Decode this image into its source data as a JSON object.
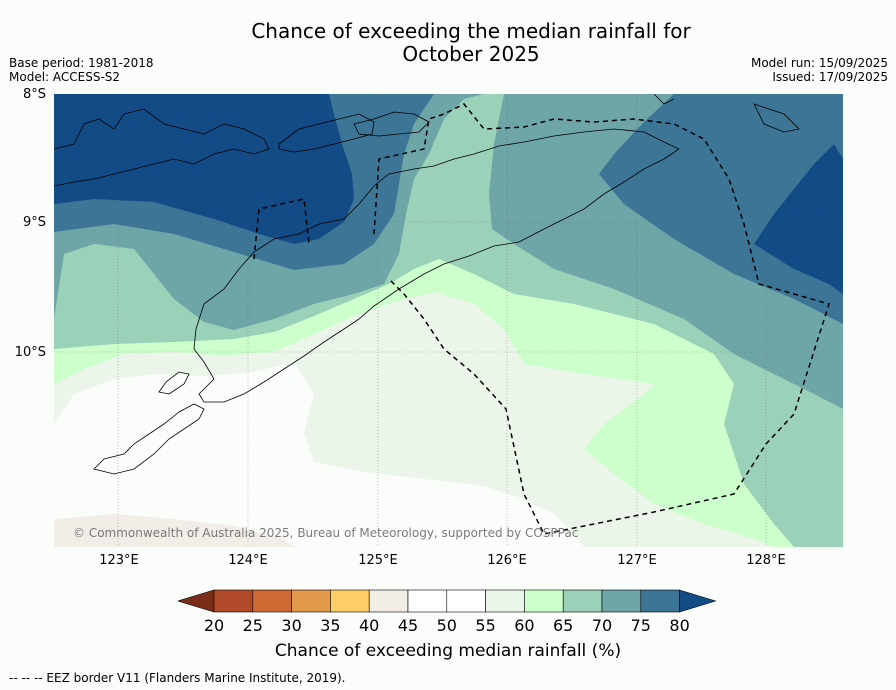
{
  "title_line1": "Chance of exceeding the median rainfall for",
  "title_line2": "October 2025",
  "base_period": "Base period: 1981-2018",
  "model": "Model: ACCESS-S2",
  "model_run": "Model run: 15/09/2025",
  "issued": "Issued: 17/09/2025",
  "lat_labels": [
    "8°S",
    "9°S",
    "10°S"
  ],
  "lon_labels": [
    "123°E",
    "124°E",
    "125°E",
    "126°E",
    "127°E",
    "128°E"
  ],
  "copyright": "© Commonwealth of Australia 2025, Bureau of Meteorology, supported by COSPPac",
  "colorbar": {
    "ticks": [
      "20",
      "25",
      "30",
      "35",
      "40",
      "45",
      "50",
      "55",
      "60",
      "65",
      "70",
      "75",
      "80"
    ],
    "colors": [
      "#7a2e1a",
      "#b14a28",
      "#d06a35",
      "#e29a4d",
      "#ffcc66",
      "#f2ede6",
      "#ffffff",
      "#ffffff",
      "#ebf5ea",
      "#ccffcc",
      "#9ad1b8",
      "#6ea6a8",
      "#3d7597",
      "#134b86"
    ],
    "label": "Chance of exceeding median rainfall (%)"
  },
  "footnote": "--  --  -- EEZ border V11 (Flanders Marine Institute, 2019)."
}
